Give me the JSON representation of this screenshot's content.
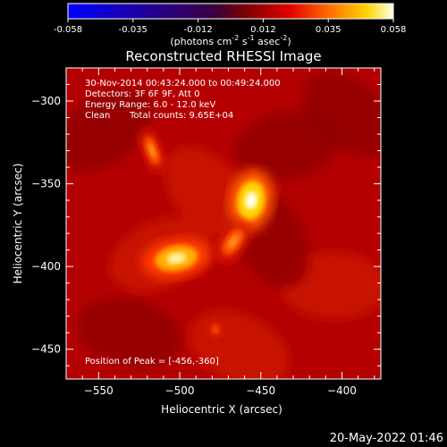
{
  "chart_data": {
    "type": "heatmap",
    "title": "Reconstructed RHESSI Image",
    "xlabel": "Heliocentric X (arcsec)",
    "ylabel": "Heliocentric Y (arcsec)",
    "xlim": [
      -570,
      -376
    ],
    "ylim": [
      -468,
      -280
    ],
    "x_ticks": [
      -550,
      -500,
      -450,
      -400
    ],
    "y_ticks": [
      -300,
      -350,
      -400,
      -450
    ],
    "colorbar": {
      "range": [
        -0.058,
        0.058
      ],
      "ticks": [
        "-0.058",
        "-0.035",
        "-0.012",
        "0.012",
        "0.035",
        "0.058"
      ],
      "label": "(photons cm^-2 s^-1 asec^-2)"
    },
    "annotations": {
      "time": "30-Nov-2014 00:43:24.000 to 00:49:24.000",
      "detectors": "Detectors: 3F 6F 9F, Att 0",
      "energy": "Energy Range: 6.0 - 12.0 keV",
      "method": "Clean",
      "counts": "Total counts: 9.65E+04",
      "peak": "Position of Peak = [-456,-360]"
    },
    "sources": [
      {
        "x": -456,
        "y": -360,
        "peak": 0.058
      },
      {
        "x": -502,
        "y": -395,
        "peak": 0.052
      },
      {
        "x": -467,
        "y": -385,
        "peak": 0.036
      },
      {
        "x": -517,
        "y": -330,
        "peak": 0.03
      },
      {
        "x": -478,
        "y": -438,
        "peak": 0.022
      }
    ],
    "background_level": 0.016
  },
  "footer": {
    "date": "20-May-2022 01:46"
  }
}
